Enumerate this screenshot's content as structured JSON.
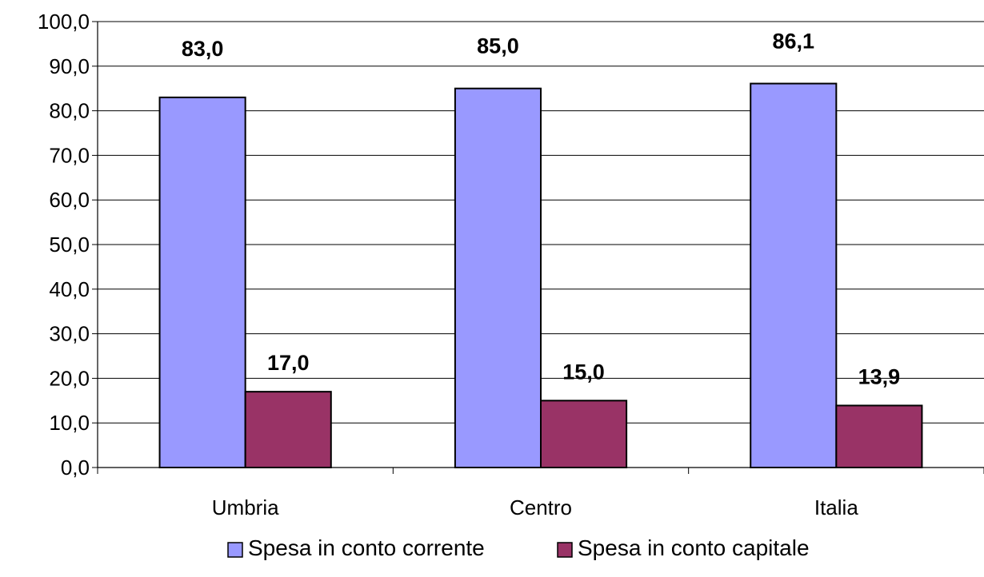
{
  "chart_data": {
    "type": "bar",
    "categories": [
      "Umbria",
      "Centro",
      "Italia"
    ],
    "series": [
      {
        "name": "Spesa in conto corrente",
        "values": [
          83.0,
          85.0,
          86.1
        ],
        "labels": [
          "83,0",
          "85,0",
          "86,1"
        ],
        "color": "#9999FF"
      },
      {
        "name": "Spesa in conto capitale",
        "values": [
          17.0,
          15.0,
          13.9
        ],
        "labels": [
          "17,0",
          "15,0",
          "13,9"
        ],
        "color": "#993366"
      }
    ],
    "ylim": [
      0,
      100
    ],
    "y_ticks": [
      0,
      10,
      20,
      30,
      40,
      50,
      60,
      70,
      80,
      90,
      100
    ],
    "y_tick_labels": [
      "0,0",
      "10,0",
      "20,0",
      "30,0",
      "40,0",
      "50,0",
      "60,0",
      "70,0",
      "80,0",
      "90,0",
      "100,0"
    ],
    "grid": true,
    "legend_position": "bottom",
    "title": "",
    "xlabel": "",
    "ylabel": ""
  }
}
